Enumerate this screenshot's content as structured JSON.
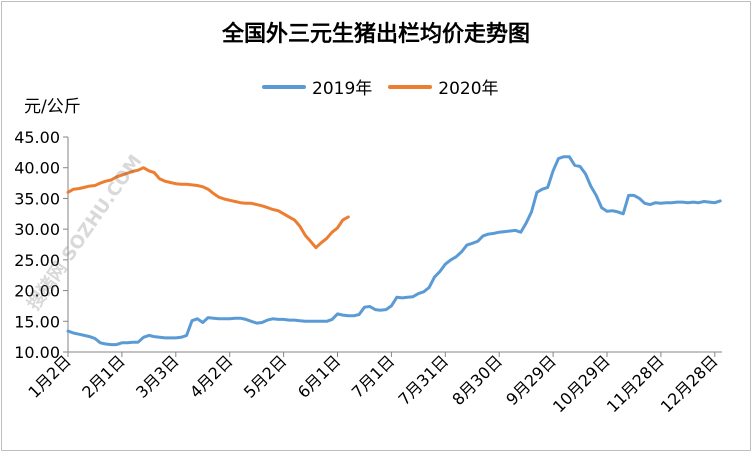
{
  "chart_data": {
    "type": "line",
    "title": "全国外三元生猪出栏均价走势图",
    "ylabel": "元/公斤",
    "ylim": [
      10,
      45
    ],
    "yticks": [
      "10.00",
      "15.00",
      "20.00",
      "25.00",
      "30.00",
      "35.00",
      "40.00",
      "45.00"
    ],
    "xlim": [
      0,
      364
    ],
    "grid": false,
    "legend_position": "top",
    "x_tick_positions": [
      0,
      30,
      60,
      90,
      120,
      150,
      180,
      210,
      240,
      270,
      300,
      330,
      360
    ],
    "x_tick_labels": [
      "1月2日",
      "2月1日",
      "3月3日",
      "4月2日",
      "5月2日",
      "6月1日",
      "7月1日",
      "7月31日",
      "8月30日",
      "9月29日",
      "10月29日",
      "11月28日",
      "12月28日"
    ],
    "series": [
      {
        "name": "2019年",
        "color": "#5b9bd5",
        "x": [
          0,
          3,
          6,
          9,
          12,
          15,
          18,
          21,
          24,
          27,
          30,
          33,
          36,
          39,
          42,
          45,
          48,
          51,
          54,
          57,
          60,
          63,
          66,
          69,
          72,
          75,
          78,
          81,
          84,
          87,
          90,
          93,
          96,
          99,
          102,
          105,
          108,
          111,
          114,
          117,
          120,
          123,
          126,
          129,
          132,
          135,
          138,
          141,
          144,
          147,
          150,
          153,
          156,
          159,
          162,
          165,
          168,
          171,
          174,
          177,
          180,
          183,
          186,
          189,
          192,
          195,
          198,
          201,
          204,
          207,
          210,
          213,
          216,
          219,
          222,
          225,
          228,
          231,
          234,
          237,
          240,
          243,
          246,
          249,
          252,
          255,
          258,
          261,
          264,
          267,
          270,
          273,
          276,
          279,
          282,
          285,
          288,
          291,
          294,
          297,
          300,
          303,
          306,
          309,
          312,
          315,
          318,
          321,
          324,
          327,
          330,
          333,
          336,
          339,
          342,
          345,
          348,
          351,
          354,
          357,
          360,
          363
        ],
        "y": [
          13.4,
          13.1,
          12.9,
          12.7,
          12.5,
          12.2,
          11.5,
          11.3,
          11.2,
          11.2,
          11.5,
          11.5,
          11.6,
          11.6,
          12.4,
          12.7,
          12.5,
          12.4,
          12.3,
          12.3,
          12.3,
          12.4,
          12.7,
          15.1,
          15.4,
          14.8,
          15.6,
          15.5,
          15.4,
          15.4,
          15.4,
          15.5,
          15.5,
          15.3,
          15.0,
          14.7,
          14.8,
          15.2,
          15.4,
          15.3,
          15.3,
          15.2,
          15.2,
          15.1,
          15.0,
          15.0,
          15.0,
          15.0,
          15.0,
          15.3,
          16.2,
          16.0,
          15.9,
          15.9,
          16.1,
          17.3,
          17.4,
          16.9,
          16.8,
          16.9,
          17.5,
          18.9,
          18.8,
          18.9,
          19.0,
          19.5,
          19.8,
          20.5,
          22.2,
          23.1,
          24.3,
          25.0,
          25.5,
          26.3,
          27.4,
          27.7,
          28.0,
          28.9,
          29.2,
          29.3,
          29.5,
          29.6,
          29.7,
          29.8,
          29.5,
          31.0,
          32.8,
          36.0,
          36.5,
          36.8,
          39.5,
          41.5,
          41.8,
          41.8,
          40.4,
          40.2,
          39.0,
          37.0,
          35.5,
          33.5,
          32.9,
          33.0,
          32.8,
          32.5,
          35.5,
          35.5,
          35.0,
          34.2,
          34.0,
          34.3,
          34.2,
          34.3,
          34.3,
          34.4,
          34.4,
          34.3,
          34.4,
          34.3,
          34.5,
          34.4,
          34.3,
          34.6
        ]
      },
      {
        "name": "2020年",
        "color": "#ed7d31",
        "x": [
          0,
          3,
          6,
          9,
          12,
          15,
          18,
          21,
          24,
          27,
          30,
          33,
          36,
          39,
          42,
          45,
          48,
          51,
          54,
          57,
          60,
          63,
          66,
          69,
          72,
          75,
          78,
          81,
          84,
          87,
          90,
          93,
          96,
          99,
          102,
          105,
          108,
          111,
          114,
          117,
          120,
          123,
          126,
          129,
          132,
          135,
          138,
          141,
          144,
          147,
          150,
          153,
          156
        ],
        "y": [
          36.0,
          36.5,
          36.6,
          36.8,
          37.0,
          37.1,
          37.5,
          37.8,
          38.0,
          38.5,
          38.8,
          39.1,
          39.4,
          39.6,
          40.0,
          39.5,
          39.2,
          38.2,
          37.8,
          37.6,
          37.4,
          37.3,
          37.3,
          37.2,
          37.1,
          36.9,
          36.5,
          35.8,
          35.2,
          34.9,
          34.7,
          34.5,
          34.3,
          34.2,
          34.2,
          34.0,
          33.8,
          33.5,
          33.2,
          33.0,
          32.5,
          32.0,
          31.5,
          30.5,
          29.0,
          28.0,
          27.0,
          27.8,
          28.5,
          29.5,
          30.2,
          31.5,
          32.0
        ]
      }
    ]
  },
  "watermark": "搜猪网 SOZHU.COM"
}
